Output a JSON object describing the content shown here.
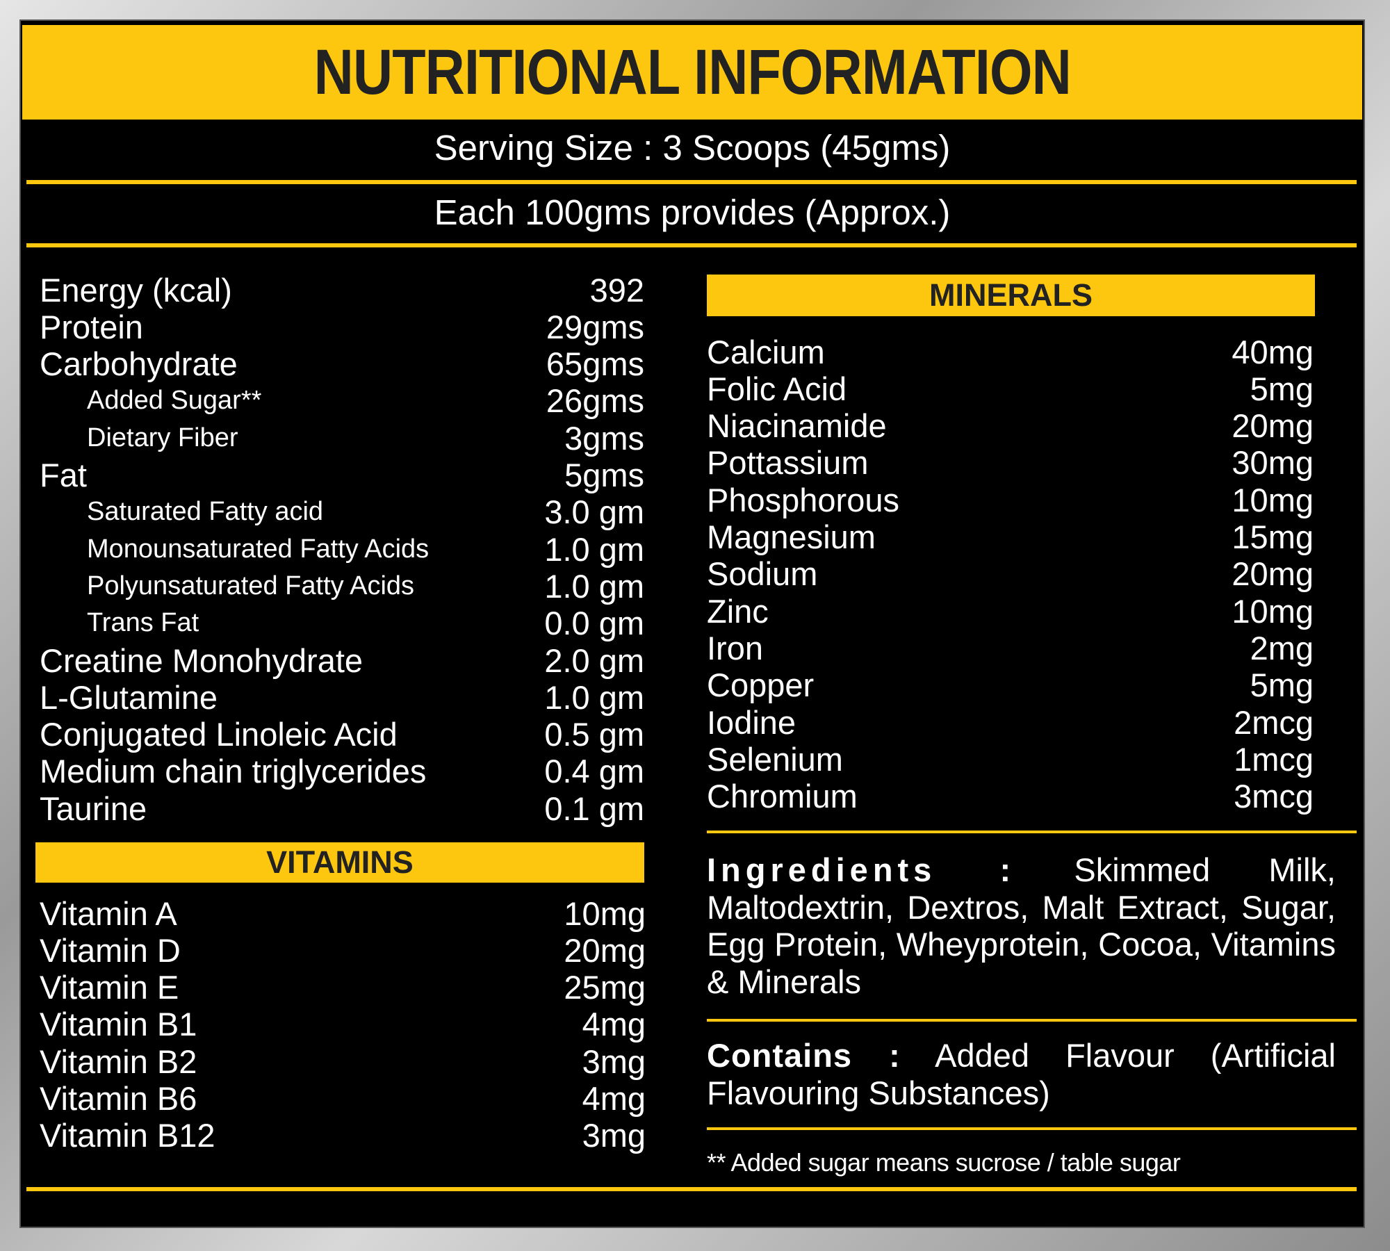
{
  "header": {
    "title": "NUTRITIONAL INFORMATION",
    "serving_size": "Serving Size : 3 Scoops (45gms)",
    "basis": "Each 100gms provides (Approx.)"
  },
  "nutrients": {
    "rows": [
      {
        "label": "Energy (kcal)",
        "value": "392"
      },
      {
        "label": "Protein",
        "value": "29gms"
      },
      {
        "label": "Carbohydrate",
        "value": "65gms",
        "sub": [
          {
            "label": "Added Sugar**",
            "value": "26gms"
          },
          {
            "label": "Dietary Fiber",
            "value": "3gms"
          }
        ]
      },
      {
        "label": "Fat",
        "value": "5gms",
        "sub": [
          {
            "label": "Saturated Fatty acid",
            "value": "3.0 gm"
          },
          {
            "label": "Monounsaturated Fatty Acids",
            "value": "1.0 gm"
          },
          {
            "label": "Polyunsaturated Fatty Acids",
            "value": "1.0 gm"
          },
          {
            "label": "Trans Fat",
            "value": "0.0 gm"
          }
        ]
      },
      {
        "label": "Creatine Monohydrate",
        "value": "2.0 gm"
      },
      {
        "label": "L-Glutamine",
        "value": "1.0 gm"
      },
      {
        "label": "Conjugated Linoleic Acid",
        "value": "0.5 gm"
      },
      {
        "label": "Medium chain triglycerides",
        "value": "0.4 gm"
      },
      {
        "label": "Taurine",
        "value": "0.1 gm"
      }
    ]
  },
  "vitamins": {
    "title": "VITAMINS",
    "rows": [
      {
        "label": "Vitamin A",
        "value": "10mg"
      },
      {
        "label": "Vitamin D",
        "value": "20mg"
      },
      {
        "label": "Vitamin E",
        "value": "25mg"
      },
      {
        "label": "Vitamin B1",
        "value": "4mg"
      },
      {
        "label": "Vitamin B2",
        "value": "3mg"
      },
      {
        "label": "Vitamin B6",
        "value": "4mg"
      },
      {
        "label": "Vitamin B12",
        "value": "3mg"
      }
    ]
  },
  "minerals": {
    "title": "MINERALS",
    "rows": [
      {
        "label": "Calcium",
        "value": "40mg"
      },
      {
        "label": "Folic Acid",
        "value": "5mg"
      },
      {
        "label": "Niacinamide",
        "value": "20mg"
      },
      {
        "label": "Pottassium",
        "value": "30mg"
      },
      {
        "label": "Phosphorous",
        "value": "10mg"
      },
      {
        "label": "Magnesium",
        "value": "15mg"
      },
      {
        "label": "Sodium",
        "value": "20mg"
      },
      {
        "label": "Zinc",
        "value": "10mg"
      },
      {
        "label": "Iron",
        "value": "2mg"
      },
      {
        "label": "Copper",
        "value": "5mg"
      },
      {
        "label": "Iodine",
        "value": "2mcg"
      },
      {
        "label": "Selenium",
        "value": "1mcg"
      },
      {
        "label": "Chromium",
        "value": "3mcg"
      }
    ]
  },
  "ingredients": {
    "label": "Ingredients :",
    "text": "Skimmed Milk, Maltodextrin, Dextros, Malt Extract, Sugar, Egg Protein, Wheyprotein, Cocoa, Vitamins & Minerals"
  },
  "contains": {
    "label": "Contains :",
    "text": "Added Flavour (Artificial Flavouring Substances)"
  },
  "footnote": "** Added sugar means sucrose / table sugar"
}
